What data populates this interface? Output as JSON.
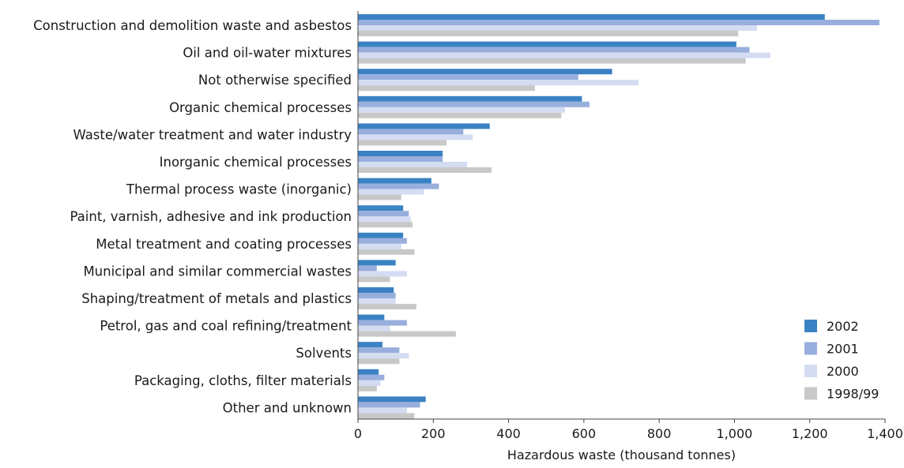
{
  "chart_data": {
    "type": "bar",
    "orientation": "horizontal",
    "xlabel": "Hazardous waste (thousand tonnes)",
    "xlim": [
      0,
      1400
    ],
    "xticks": [
      0,
      200,
      400,
      600,
      800,
      1000,
      1200,
      1400
    ],
    "xtick_labels": [
      "0",
      "200",
      "400",
      "600",
      "800",
      "1,000",
      "1,200",
      "1,400"
    ],
    "grid": false,
    "legend_position": "bottom-right",
    "categories": [
      "Construction and demolition waste and asbestos",
      "Oil and oil-water mixtures",
      "Not otherwise specified",
      "Organic chemical processes",
      "Waste/water treatment and water industry",
      "Inorganic chemical processes",
      "Thermal process waste (inorganic)",
      "Paint, varnish, adhesive and ink production",
      "Metal treatment and coating processes",
      "Municipal and similar commercial wastes",
      "Shaping/treatment of metals and plastics",
      "Petrol, gas and coal refining/treatment",
      "Solvents",
      "Packaging, cloths, filter materials",
      "Other and unknown"
    ],
    "series": [
      {
        "name": "2002",
        "color": "#3a82c4",
        "values": [
          1240,
          1005,
          675,
          595,
          350,
          225,
          195,
          120,
          120,
          100,
          95,
          70,
          65,
          55,
          180
        ]
      },
      {
        "name": "2001",
        "color": "#98aedc",
        "values": [
          1385,
          1040,
          585,
          615,
          280,
          225,
          215,
          135,
          130,
          50,
          100,
          130,
          110,
          70,
          165
        ]
      },
      {
        "name": "2000",
        "color": "#d3dcf1",
        "values": [
          1060,
          1095,
          745,
          550,
          305,
          290,
          175,
          140,
          115,
          130,
          100,
          85,
          135,
          60,
          130
        ]
      },
      {
        "name": "1998/99",
        "color": "#c8c8c8",
        "values": [
          1010,
          1030,
          470,
          540,
          235,
          355,
          115,
          145,
          150,
          85,
          155,
          260,
          110,
          50,
          150
        ]
      }
    ]
  }
}
